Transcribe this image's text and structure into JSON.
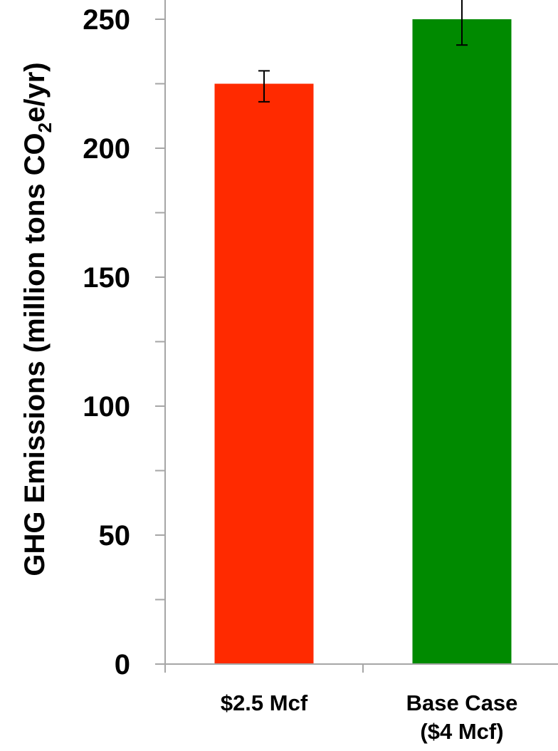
{
  "chart_data": {
    "type": "bar",
    "ylabel_main": "GHG Emissions (million tons CO",
    "ylabel_sub": "2",
    "ylabel_tail": "e/yr)",
    "ylim": [
      0,
      250
    ],
    "major_ticks": [
      0,
      50,
      100,
      150,
      200,
      250
    ],
    "minor_step": 25,
    "grid": false,
    "categories": [
      {
        "line1": "$2.5 Mcf",
        "line2": ""
      },
      {
        "line1": "Base Case",
        "line2": "($4 Mcf)"
      }
    ],
    "series": [
      {
        "values": [
          225,
          250
        ],
        "error_low": [
          218,
          240
        ],
        "error_high": [
          230,
          260
        ],
        "colors": [
          "#ff2a00",
          "#008a00"
        ]
      }
    ]
  }
}
